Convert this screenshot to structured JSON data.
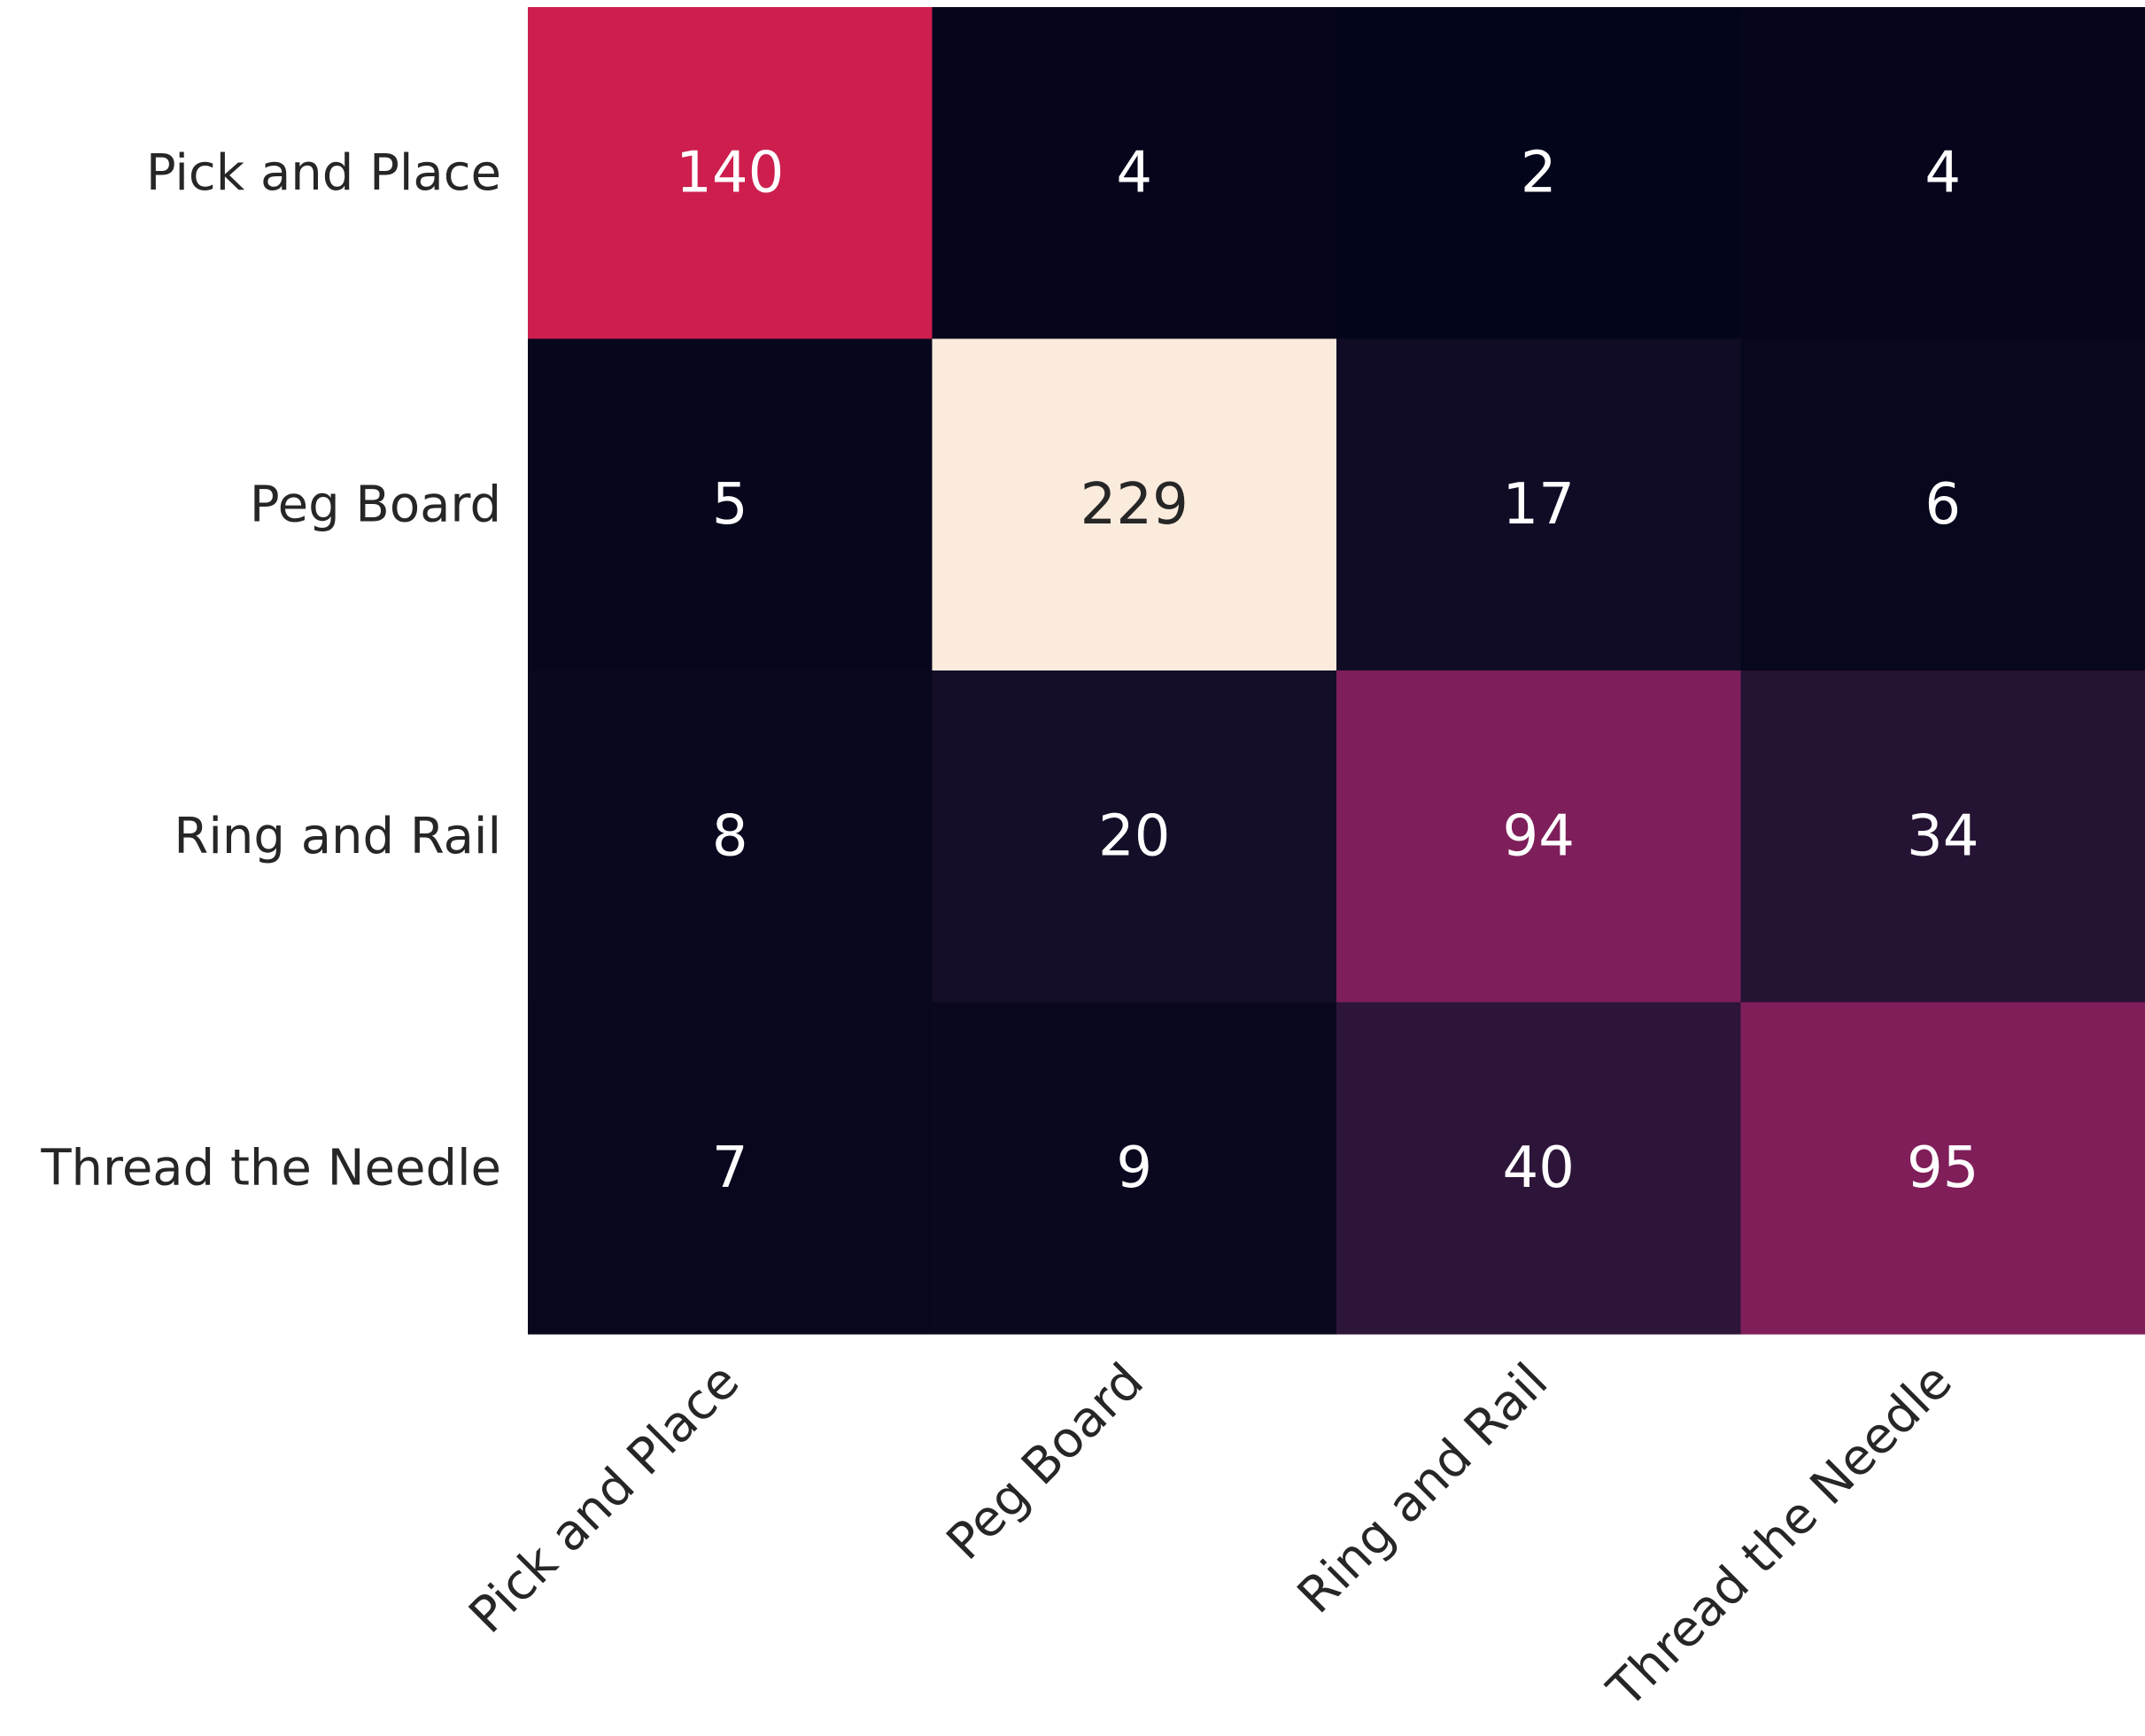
{
  "chart_data": {
    "type": "heatmap",
    "title": "",
    "xlabel": "",
    "ylabel": "",
    "rows": [
      "Pick and Place",
      "Peg Board",
      "Ring and Rail",
      "Thread the Needle"
    ],
    "columns": [
      "Pick and Place",
      "Peg Board",
      "Ring and Rail",
      "Thread the Needle"
    ],
    "values": [
      [
        140,
        4,
        2,
        4
      ],
      [
        5,
        229,
        17,
        6
      ],
      [
        8,
        20,
        94,
        34
      ],
      [
        7,
        9,
        40,
        95
      ]
    ],
    "colormap": "rocket",
    "value_range": [
      2,
      229
    ],
    "annotation_colors": {
      "on_dark": "#ffffff",
      "on_light": "#262626"
    },
    "tick_label_color": "#262626",
    "colorbar": false,
    "grid": false
  }
}
